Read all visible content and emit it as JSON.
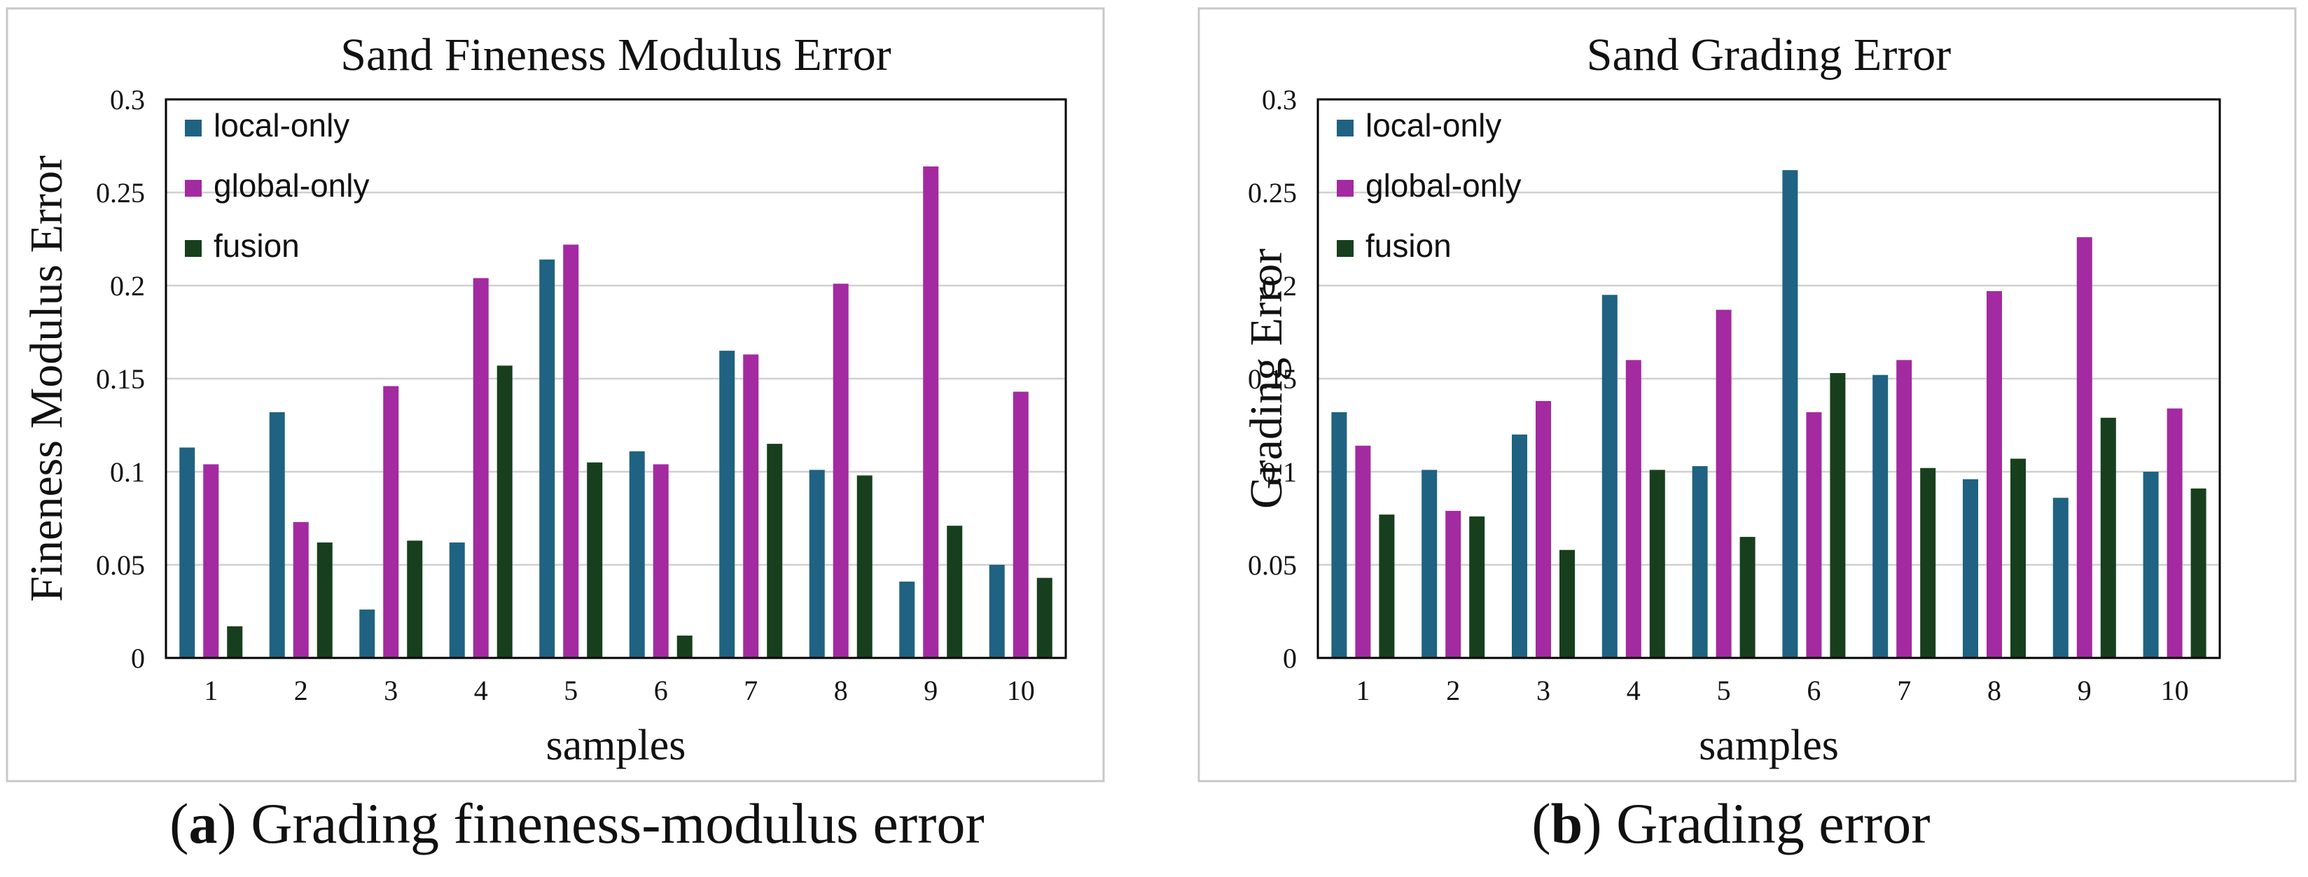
{
  "colors": {
    "local-only": "#1f6281",
    "global-only": "#a32aa0",
    "fusion": "#173f1d",
    "grid": "#d0d0d0",
    "frame": "#c8c8c8"
  },
  "captions": [
    {
      "letter": "a",
      "text": "Grading fineness-modulus error"
    },
    {
      "letter": "b",
      "text": "Grading error"
    }
  ],
  "chart_data": [
    {
      "type": "bar",
      "title": "Sand Fineness Modulus Error",
      "xlabel": "samples",
      "ylabel": "Fineness Modulus Error",
      "categories": [
        "1",
        "2",
        "3",
        "4",
        "5",
        "6",
        "7",
        "8",
        "9",
        "10"
      ],
      "ylim": [
        0,
        0.3
      ],
      "yticks": [
        "0",
        "0.05",
        "0.1",
        "0.15",
        "0.2",
        "0.25",
        "0.3"
      ],
      "grid": true,
      "legend": "top-left",
      "series": [
        {
          "name": "local-only",
          "values": [
            0.113,
            0.132,
            0.026,
            0.062,
            0.214,
            0.111,
            0.165,
            0.101,
            0.041,
            0.05
          ]
        },
        {
          "name": "global-only",
          "values": [
            0.104,
            0.073,
            0.146,
            0.204,
            0.222,
            0.104,
            0.163,
            0.201,
            0.264,
            0.143
          ]
        },
        {
          "name": "fusion",
          "values": [
            0.017,
            0.062,
            0.063,
            0.157,
            0.105,
            0.012,
            0.115,
            0.098,
            0.071,
            0.043
          ]
        }
      ]
    },
    {
      "type": "bar",
      "title": "Sand Grading Error",
      "xlabel": "samples",
      "ylabel": "Grading Error",
      "categories": [
        "1",
        "2",
        "3",
        "4",
        "5",
        "6",
        "7",
        "8",
        "9",
        "10"
      ],
      "ylim": [
        0,
        0.3
      ],
      "yticks": [
        "0",
        "0.05",
        "0.1",
        "0.15",
        "0.2",
        "0.25",
        "0.3"
      ],
      "grid": true,
      "legend": "top-left",
      "series": [
        {
          "name": "local-only",
          "values": [
            0.132,
            0.101,
            0.12,
            0.195,
            0.103,
            0.262,
            0.152,
            0.096,
            0.086,
            0.1
          ]
        },
        {
          "name": "global-only",
          "values": [
            0.114,
            0.079,
            0.138,
            0.16,
            0.187,
            0.132,
            0.16,
            0.197,
            0.226,
            0.134
          ]
        },
        {
          "name": "fusion",
          "values": [
            0.077,
            0.076,
            0.058,
            0.101,
            0.065,
            0.153,
            0.102,
            0.107,
            0.129,
            0.091
          ]
        }
      ]
    }
  ]
}
